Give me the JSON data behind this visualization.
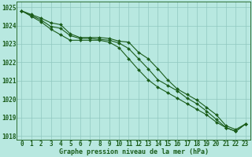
{
  "x": [
    0,
    1,
    2,
    3,
    4,
    5,
    6,
    7,
    8,
    9,
    10,
    11,
    12,
    13,
    14,
    15,
    16,
    17,
    18,
    19,
    20,
    21,
    22,
    23
  ],
  "line1": [
    1024.8,
    1024.6,
    1024.4,
    1024.15,
    1024.05,
    1023.55,
    1023.35,
    1023.35,
    1023.35,
    1023.3,
    1023.15,
    1023.1,
    1022.55,
    1022.2,
    1021.65,
    1021.05,
    1020.55,
    1020.25,
    1019.95,
    1019.55,
    1019.15,
    1018.55,
    1018.35,
    1018.65
  ],
  "line2": [
    1024.8,
    1024.55,
    1024.3,
    1023.95,
    1023.85,
    1023.45,
    1023.3,
    1023.3,
    1023.25,
    1023.2,
    1023.05,
    1022.75,
    1022.2,
    1021.65,
    1021.05,
    1020.75,
    1020.45,
    1020.05,
    1019.75,
    1019.35,
    1018.9,
    1018.45,
    1018.25,
    1018.65
  ],
  "line3": [
    1024.8,
    1024.5,
    1024.2,
    1023.8,
    1023.5,
    1023.2,
    1023.2,
    1023.2,
    1023.2,
    1023.1,
    1022.8,
    1022.2,
    1021.6,
    1021.05,
    1020.65,
    1020.35,
    1020.05,
    1019.75,
    1019.45,
    1019.15,
    1018.75,
    1018.45,
    1018.25,
    1018.65
  ],
  "bg_color": "#b8e8e0",
  "grid_color": "#90c8c0",
  "line_color": "#1a5c1a",
  "xlabel": "Graphe pression niveau de la mer (hPa)",
  "ylim": [
    1017.8,
    1025.3
  ],
  "yticks": [
    1018,
    1019,
    1020,
    1021,
    1022,
    1023,
    1024,
    1025
  ],
  "xticks": [
    0,
    1,
    2,
    3,
    4,
    5,
    6,
    7,
    8,
    9,
    10,
    11,
    12,
    13,
    14,
    15,
    16,
    17,
    18,
    19,
    20,
    21,
    22,
    23
  ],
  "xlabel_fontsize": 6.0,
  "tick_fontsize": 5.5,
  "line_width": 0.8,
  "marker_size": 2.0
}
